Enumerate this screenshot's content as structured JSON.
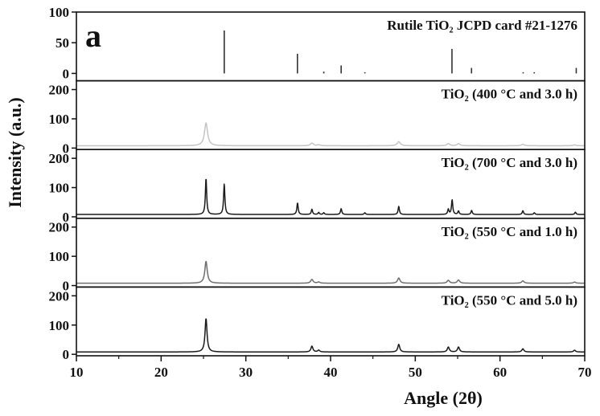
{
  "figure_letter": "a",
  "chart_data": {
    "type": "line",
    "xlabel": "Angle (2θ)",
    "ylabel": "Intensity (a.u.)",
    "xlim": [
      10,
      70
    ],
    "x_ticks": [
      10,
      20,
      30,
      40,
      50,
      60,
      70
    ],
    "grid": false,
    "panels": [
      {
        "id": "reference",
        "kind": "stick",
        "label": "Rutile TiO₂ JCPD card #21-1276",
        "ylim": [
          -12,
          100
        ],
        "y_ticks": [
          0,
          50,
          100
        ],
        "color": "#333333",
        "sticks": [
          {
            "x": 27.45,
            "y": 70
          },
          {
            "x": 36.09,
            "y": 32
          },
          {
            "x": 39.2,
            "y": 3
          },
          {
            "x": 41.25,
            "y": 13
          },
          {
            "x": 44.05,
            "y": 2
          },
          {
            "x": 54.33,
            "y": 40
          },
          {
            "x": 56.64,
            "y": 9
          },
          {
            "x": 62.74,
            "y": 2
          },
          {
            "x": 64.04,
            "y": 2
          },
          {
            "x": 69.0,
            "y": 9
          }
        ]
      },
      {
        "id": "tio2-400c-3h",
        "kind": "pattern",
        "label": "TiO₂ (400 °C and 3.0 h)",
        "ylim": [
          -5,
          230
        ],
        "y_ticks": [
          0,
          100,
          200
        ],
        "color": "#c4c4c4",
        "baseline": 8,
        "peaks": [
          {
            "x": 25.3,
            "height": 78,
            "width": 0.22
          },
          {
            "x": 37.8,
            "height": 9,
            "width": 0.2
          },
          {
            "x": 38.6,
            "height": 3,
            "width": 0.2
          },
          {
            "x": 48.05,
            "height": 14,
            "width": 0.22
          },
          {
            "x": 53.9,
            "height": 7,
            "width": 0.2
          },
          {
            "x": 55.1,
            "height": 7,
            "width": 0.2
          },
          {
            "x": 62.7,
            "height": 5,
            "width": 0.2
          },
          {
            "x": 68.8,
            "height": 3,
            "width": 0.2
          }
        ]
      },
      {
        "id": "tio2-700c-3h",
        "kind": "pattern",
        "label": "TiO₂ (700 °C and 3.0 h)",
        "ylim": [
          -5,
          230
        ],
        "y_ticks": [
          0,
          100,
          200
        ],
        "color": "#1a1a1a",
        "baseline": 8,
        "peaks": [
          {
            "x": 25.3,
            "height": 125,
            "width": 0.09
          },
          {
            "x": 27.45,
            "height": 105,
            "width": 0.09
          },
          {
            "x": 36.1,
            "height": 40,
            "width": 0.09
          },
          {
            "x": 37.8,
            "height": 18,
            "width": 0.09
          },
          {
            "x": 38.6,
            "height": 7,
            "width": 0.09
          },
          {
            "x": 39.2,
            "height": 6,
            "width": 0.09
          },
          {
            "x": 41.25,
            "height": 20,
            "width": 0.09
          },
          {
            "x": 44.05,
            "height": 6,
            "width": 0.09
          },
          {
            "x": 48.05,
            "height": 28,
            "width": 0.09
          },
          {
            "x": 53.9,
            "height": 18,
            "width": 0.09
          },
          {
            "x": 54.35,
            "height": 50,
            "width": 0.09
          },
          {
            "x": 55.1,
            "height": 12,
            "width": 0.09
          },
          {
            "x": 56.65,
            "height": 14,
            "width": 0.09
          },
          {
            "x": 62.7,
            "height": 13,
            "width": 0.09
          },
          {
            "x": 64.05,
            "height": 6,
            "width": 0.09
          },
          {
            "x": 68.9,
            "height": 8,
            "width": 0.09
          }
        ]
      },
      {
        "id": "tio2-550c-1h",
        "kind": "pattern",
        "label": "TiO₂ (550 °C and 1.0 h)",
        "ylim": [
          -5,
          230
        ],
        "y_ticks": [
          0,
          100,
          200
        ],
        "color": "#6e6e6e",
        "baseline": 8,
        "peaks": [
          {
            "x": 25.3,
            "height": 75,
            "width": 0.17
          },
          {
            "x": 37.8,
            "height": 13,
            "width": 0.17
          },
          {
            "x": 38.6,
            "height": 4,
            "width": 0.17
          },
          {
            "x": 48.05,
            "height": 18,
            "width": 0.17
          },
          {
            "x": 53.9,
            "height": 10,
            "width": 0.17
          },
          {
            "x": 55.1,
            "height": 11,
            "width": 0.17
          },
          {
            "x": 62.7,
            "height": 8,
            "width": 0.17
          },
          {
            "x": 68.8,
            "height": 4,
            "width": 0.17
          }
        ]
      },
      {
        "id": "tio2-550c-5h",
        "kind": "pattern",
        "label": "TiO₂ (550 °C and 5.0 h)",
        "ylim": [
          -5,
          230
        ],
        "y_ticks": [
          0,
          100,
          200
        ],
        "color": "#1a1a1a",
        "baseline": 8,
        "peaks": [
          {
            "x": 25.3,
            "height": 115,
            "width": 0.14
          },
          {
            "x": 37.8,
            "height": 20,
            "width": 0.14
          },
          {
            "x": 38.6,
            "height": 6,
            "width": 0.14
          },
          {
            "x": 48.05,
            "height": 26,
            "width": 0.14
          },
          {
            "x": 53.9,
            "height": 17,
            "width": 0.14
          },
          {
            "x": 55.1,
            "height": 17,
            "width": 0.14
          },
          {
            "x": 62.7,
            "height": 11,
            "width": 0.14
          },
          {
            "x": 68.8,
            "height": 6,
            "width": 0.14
          }
        ]
      }
    ]
  }
}
